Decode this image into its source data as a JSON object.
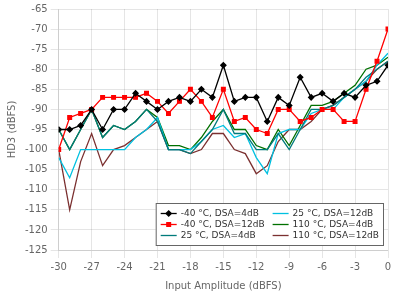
{
  "chart_data": {
    "type": "line",
    "xlabel": "Input Amplitude (dBFS)",
    "ylabel": "HD3 (dBFS)",
    "x": [
      -30,
      -29,
      -28,
      -27,
      -26,
      -25,
      -24,
      -23,
      -22,
      -21,
      -20,
      -19,
      -18,
      -17,
      -16,
      -15,
      -14,
      -13,
      -12,
      -11,
      -10,
      -9,
      -8,
      -7,
      -6,
      -5,
      -4,
      -3,
      -2,
      -1,
      0
    ],
    "series": [
      {
        "name": "-40 °C, DSA=4dB",
        "color": "#000000",
        "marker": "diamond",
        "values": [
          -95,
          -95,
          -94,
          -90,
          -95,
          -90,
          -90,
          -86,
          -88,
          -90,
          -88,
          -87,
          -88,
          -85,
          -87,
          -79,
          -88,
          -87,
          -87,
          -93,
          -87,
          -89,
          -82,
          -87,
          -86,
          -88,
          -86,
          -87,
          -84,
          -83,
          -79
        ]
      },
      {
        "name": "-40 °C, DSA=12dB",
        "color": "#ff0000",
        "marker": "square",
        "values": [
          -100,
          -92,
          -91,
          -90,
          -87,
          -87,
          -87,
          -87,
          -86,
          -88,
          -91,
          -88,
          -85,
          -88,
          -92,
          -85,
          -93,
          -92,
          -95,
          -96,
          -90,
          -90,
          -93,
          -92,
          -90,
          -90,
          -93,
          -93,
          -85,
          -78,
          -70
        ]
      },
      {
        "name": "25 °C, DSA=4dB",
        "color": "#007b7b",
        "values": [
          -95,
          -100,
          -95,
          -90,
          -97,
          -94,
          -95,
          -93,
          -90,
          -93,
          -100,
          -100,
          -101,
          -98,
          -95,
          -90,
          -96,
          -96,
          -100,
          -100,
          -96,
          -100,
          -95,
          -90,
          -90,
          -89,
          -87,
          -85,
          -82,
          -80,
          -78
        ]
      },
      {
        "name": "25 °C, DSA=12dB",
        "color": "#00c0e0",
        "values": [
          -102,
          -107,
          -100,
          -100,
          -100,
          -100,
          -100,
          -97,
          -95,
          -92,
          -100,
          -100,
          -100,
          -98,
          -95,
          -94,
          -97,
          -96,
          -102,
          -106,
          -96,
          -95,
          -95,
          -91,
          -90,
          -90,
          -87,
          -85,
          -83,
          -79,
          -76
        ]
      },
      {
        "name": "110 °C, DSA=4dB",
        "color": "#007000",
        "values": [
          -95,
          -100,
          -95,
          -90,
          -97,
          -94,
          -95,
          -93,
          -90,
          -92,
          -99,
          -99,
          -100,
          -97,
          -93,
          -90,
          -95,
          -95,
          -99,
          -100,
          -95,
          -99,
          -94,
          -89,
          -89,
          -88,
          -86,
          -84,
          -80,
          -79,
          -77
        ]
      },
      {
        "name": "110 °C, DSA=12dB",
        "color": "#7b3030",
        "values": [
          -100,
          -115,
          -103,
          -96,
          -104,
          -100,
          -99,
          -97,
          -95,
          -93,
          -100,
          -100,
          -101,
          -100,
          -96,
          -96,
          -100,
          -101,
          -106,
          -104,
          -98,
          -95,
          -95,
          -93,
          -90,
          -89,
          -87,
          -85,
          -83,
          -80,
          -78
        ]
      }
    ],
    "xlim": [
      -30,
      0
    ],
    "ylim": [
      -125,
      -65
    ],
    "xticks": [
      -30,
      -27,
      -24,
      -21,
      -18,
      -15,
      -12,
      -9,
      -6,
      -3,
      0
    ],
    "yticks": [
      -65,
      -70,
      -75,
      -80,
      -85,
      -90,
      -95,
      -100,
      -105,
      -110,
      -115,
      -120,
      -125
    ],
    "grid": true,
    "legend": "lower right"
  }
}
